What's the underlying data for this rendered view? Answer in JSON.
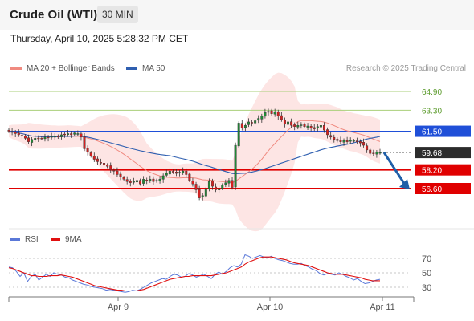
{
  "header": {
    "title": "Crude Oil (WTI)",
    "timeframe": "30 MIN"
  },
  "datetime": "Thursday, April 10, 2025 5:28:32 PM CET",
  "legend": {
    "ma20_label": "MA 20 + Bollinger Bands",
    "ma50_label": "MA 50",
    "credit": "Research © 2025 Trading Central"
  },
  "rsi_legend": {
    "rsi_label": "RSI",
    "ma_label": "9MA"
  },
  "colors": {
    "up": "#1f8a35",
    "down": "#d62020",
    "ma20": "#f08a80",
    "ma50": "#2f5fb0",
    "band": "#fde0df",
    "resistance": "#a9cf7a",
    "support": "#e00000",
    "pivot": "#1f4fd8",
    "arrow": "#1f5fa8",
    "rsi": "#5a78d8",
    "rsi_ma": "#e01010"
  },
  "chart_data": [
    {
      "type": "candlestick",
      "title": "Crude Oil (WTI)",
      "timeframe": "30 MIN",
      "x_ticks": [
        "Apr 9",
        "Apr 10",
        "Apr 11"
      ],
      "ylim": [
        53.5,
        66.5
      ],
      "levels": [
        {
          "label": "64.90",
          "value": 64.9,
          "kind": "resistance"
        },
        {
          "label": "63.30",
          "value": 63.3,
          "kind": "resistance"
        },
        {
          "label": "61.50",
          "value": 61.5,
          "kind": "pivot"
        },
        {
          "label": "59.68",
          "value": 59.68,
          "kind": "last"
        },
        {
          "label": "58.20",
          "value": 58.2,
          "kind": "support"
        },
        {
          "label": "56.60",
          "value": 56.6,
          "kind": "support"
        }
      ],
      "closes": [
        61.5,
        61.4,
        61.3,
        61.2,
        61.1,
        60.9,
        60.6,
        60.8,
        60.9,
        60.85,
        60.9,
        61.0,
        60.95,
        61.05,
        61.1,
        61.0,
        61.2,
        61.25,
        61.3,
        61.2,
        61.35,
        61.3,
        61.0,
        60.0,
        59.7,
        59.4,
        59.1,
        58.9,
        58.8,
        58.6,
        58.5,
        58.2,
        58.1,
        57.8,
        57.6,
        57.4,
        57.2,
        57.1,
        57.2,
        57.3,
        57.0,
        57.4,
        57.3,
        57.4,
        57.2,
        57.3,
        57.4,
        57.7,
        57.9,
        58.1,
        58.0,
        57.9,
        58.0,
        58.1,
        57.8,
        57.3,
        57.0,
        56.5,
        55.8,
        56.0,
        56.6,
        57.2,
        56.8,
        56.5,
        56.6,
        56.9,
        57.1,
        57.3,
        56.7,
        60.3,
        62.2,
        61.8,
        62.0,
        62.3,
        62.2,
        62.4,
        62.6,
        62.8,
        63.1,
        63.2,
        63.0,
        63.15,
        62.8,
        62.5,
        62.1,
        62.3,
        62.0,
        61.9,
        62.0,
        62.05,
        61.9,
        61.95,
        61.8,
        61.7,
        61.9,
        62.0,
        61.6,
        61.2,
        61.0,
        60.8,
        60.7,
        60.6,
        60.7,
        60.6,
        60.75,
        60.7,
        60.6,
        60.5,
        60.3,
        59.9,
        59.6,
        59.6,
        59.7,
        59.68
      ],
      "ma_labels": [
        "MA 20 + Bollinger Bands",
        "MA 50"
      ],
      "forecast": {
        "from": 59.68,
        "to": 56.6
      }
    },
    {
      "type": "line",
      "title": "RSI",
      "series": [
        {
          "name": "RSI",
          "values": [
            58,
            57,
            52,
            45,
            50,
            38,
            45,
            48,
            40,
            44,
            48,
            45,
            50,
            48,
            47,
            44,
            43,
            40,
            38,
            36,
            34,
            33,
            31,
            30,
            29,
            28,
            26,
            27,
            26,
            25,
            24,
            23,
            24,
            26,
            25,
            27,
            30,
            33,
            36,
            38,
            40,
            42,
            41,
            45,
            48,
            47,
            44,
            45,
            49,
            47,
            44,
            46,
            48,
            45,
            42,
            48,
            51,
            48,
            52,
            57,
            60,
            58,
            62,
            75,
            73,
            70,
            72,
            74,
            72,
            71,
            73,
            70,
            68,
            67,
            65,
            63,
            62,
            62,
            63,
            60,
            58,
            55,
            53,
            49,
            47,
            49,
            48,
            47,
            50,
            48,
            45,
            43,
            40,
            42,
            38,
            35,
            36,
            38,
            40,
            41
          ]
        },
        {
          "name": "9MA",
          "values": [
            57,
            56,
            54,
            52,
            50,
            48,
            46,
            46,
            45,
            45,
            45,
            46,
            46,
            46,
            47,
            46,
            45,
            44,
            42,
            40,
            38,
            36,
            34,
            32,
            31,
            30,
            29,
            28,
            27,
            26,
            26,
            25,
            25,
            25,
            25,
            26,
            27,
            29,
            31,
            33,
            35,
            37,
            39,
            41,
            42,
            43,
            44,
            45,
            45,
            46,
            46,
            46,
            46,
            46,
            46,
            47,
            48,
            49,
            50,
            52,
            54,
            56,
            58,
            62,
            65,
            67,
            69,
            71,
            72,
            72,
            72,
            71,
            70,
            69,
            68,
            66,
            64,
            63,
            62,
            61,
            60,
            58,
            56,
            54,
            52,
            50,
            49,
            48,
            48,
            48,
            47,
            46,
            45,
            44,
            43,
            41,
            40,
            39,
            39,
            39
          ]
        }
      ],
      "ylim": [
        20,
        80
      ],
      "y_ticks": [
        30,
        50,
        70
      ],
      "x_ticks": [
        "Apr 9",
        "Apr 10",
        "Apr 11"
      ]
    }
  ]
}
